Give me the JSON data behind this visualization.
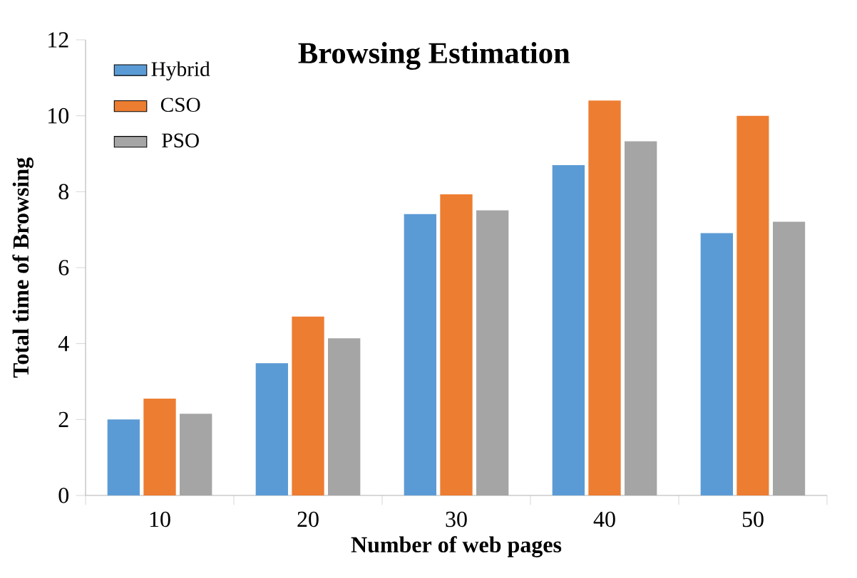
{
  "chart_data": {
    "type": "bar",
    "title": "Browsing Estimation",
    "xlabel": "Number of web pages",
    "ylabel": "Total time of Browsing",
    "categories": [
      "10",
      "20",
      "30",
      "40",
      "50"
    ],
    "series": [
      {
        "name": "Hybrid",
        "color": "#5b9bd5",
        "values": [
          2.0,
          3.48,
          7.41,
          8.7,
          6.91
        ]
      },
      {
        "name": "CSO",
        "color": "#ed7d31",
        "values": [
          2.55,
          4.71,
          7.93,
          10.4,
          10.0
        ]
      },
      {
        "name": "PSO",
        "color": "#a5a5a5",
        "values": [
          2.15,
          4.14,
          7.51,
          9.33,
          7.21
        ]
      }
    ],
    "ylim": [
      0,
      12
    ],
    "yticks": [
      0,
      2,
      4,
      6,
      8,
      10,
      12
    ],
    "grid": false,
    "legend": "top left"
  }
}
